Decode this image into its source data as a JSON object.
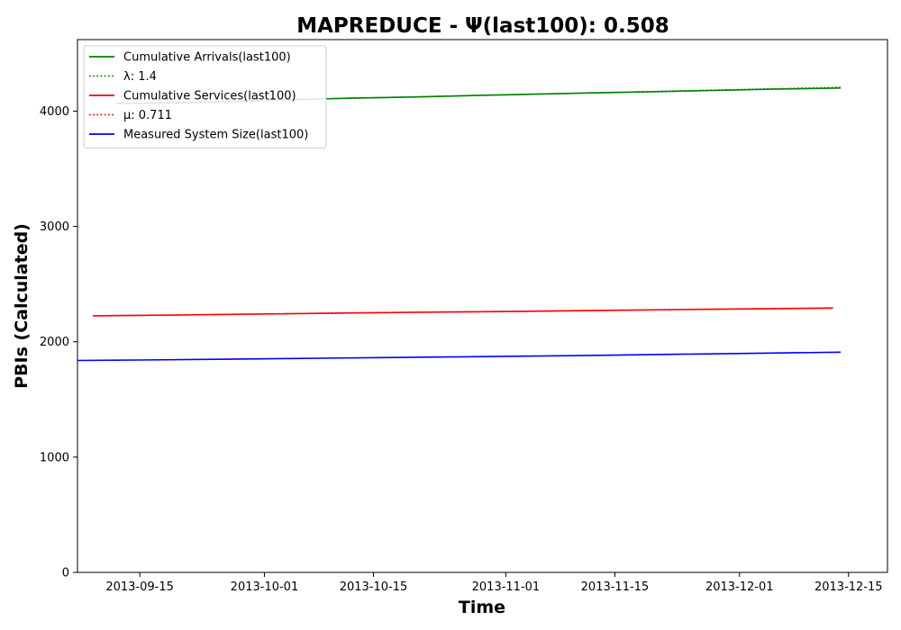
{
  "chart_data": {
    "type": "line",
    "title": "MAPREDUCE -  Ψ(last100): 0.508",
    "xlabel": "Time",
    "ylabel": "PBIs (Calculated)",
    "x_ticks": [
      "2013-09-15",
      "2013-10-01",
      "2013-10-15",
      "2013-11-01",
      "2013-11-15",
      "2013-12-01",
      "2013-12-15"
    ],
    "y_ticks": [
      0,
      1000,
      2000,
      3000,
      4000
    ],
    "xlim": [
      "2013-09-07",
      "2013-12-20"
    ],
    "ylim": [
      0,
      4620
    ],
    "grid": false,
    "legend_position": "top-left",
    "series": [
      {
        "name": "Cumulative Arrivals(last100)",
        "color": "#008000",
        "style": "solid",
        "x": [
          "2013-09-12",
          "2013-09-20",
          "2013-09-28",
          "2013-10-05",
          "2013-10-12",
          "2013-10-20",
          "2013-10-28",
          "2013-11-05",
          "2013-11-12",
          "2013-11-20",
          "2013-11-28",
          "2013-12-05",
          "2013-12-14"
        ],
        "values": [
          4065,
          4072,
          4085,
          4100,
          4112,
          4122,
          4135,
          4147,
          4158,
          4168,
          4180,
          4190,
          4200
        ]
      },
      {
        "name": "λ: 1.4",
        "color": "#008000",
        "style": "dotted",
        "x": [
          "2013-09-12",
          "2013-12-14"
        ],
        "values": [
          4065,
          4206
        ]
      },
      {
        "name": "Cumulative Services(last100)",
        "color": "#ff0000",
        "style": "solid",
        "x": [
          "2013-09-09",
          "2013-09-20",
          "2013-09-30",
          "2013-10-10",
          "2013-10-20",
          "2013-11-01",
          "2013-11-12",
          "2013-11-25",
          "2013-12-05",
          "2013-12-13"
        ],
        "values": [
          2225,
          2232,
          2240,
          2248,
          2255,
          2262,
          2270,
          2280,
          2286,
          2292
        ]
      },
      {
        "name": "μ: 0.711",
        "color": "#ff0000",
        "style": "dotted",
        "x": [
          "2013-09-09",
          "2013-12-13"
        ],
        "values": [
          2225,
          2294
        ]
      },
      {
        "name": "Measured System Size(last100)",
        "color": "#0000ff",
        "style": "solid",
        "x": [
          "2013-09-07",
          "2013-09-15",
          "2013-09-25",
          "2013-10-05",
          "2013-10-15",
          "2013-10-25",
          "2013-11-05",
          "2013-11-15",
          "2013-11-25",
          "2013-12-05",
          "2013-12-14"
        ],
        "values": [
          1838,
          1842,
          1848,
          1855,
          1862,
          1868,
          1876,
          1884,
          1893,
          1902,
          1910
        ]
      }
    ]
  }
}
